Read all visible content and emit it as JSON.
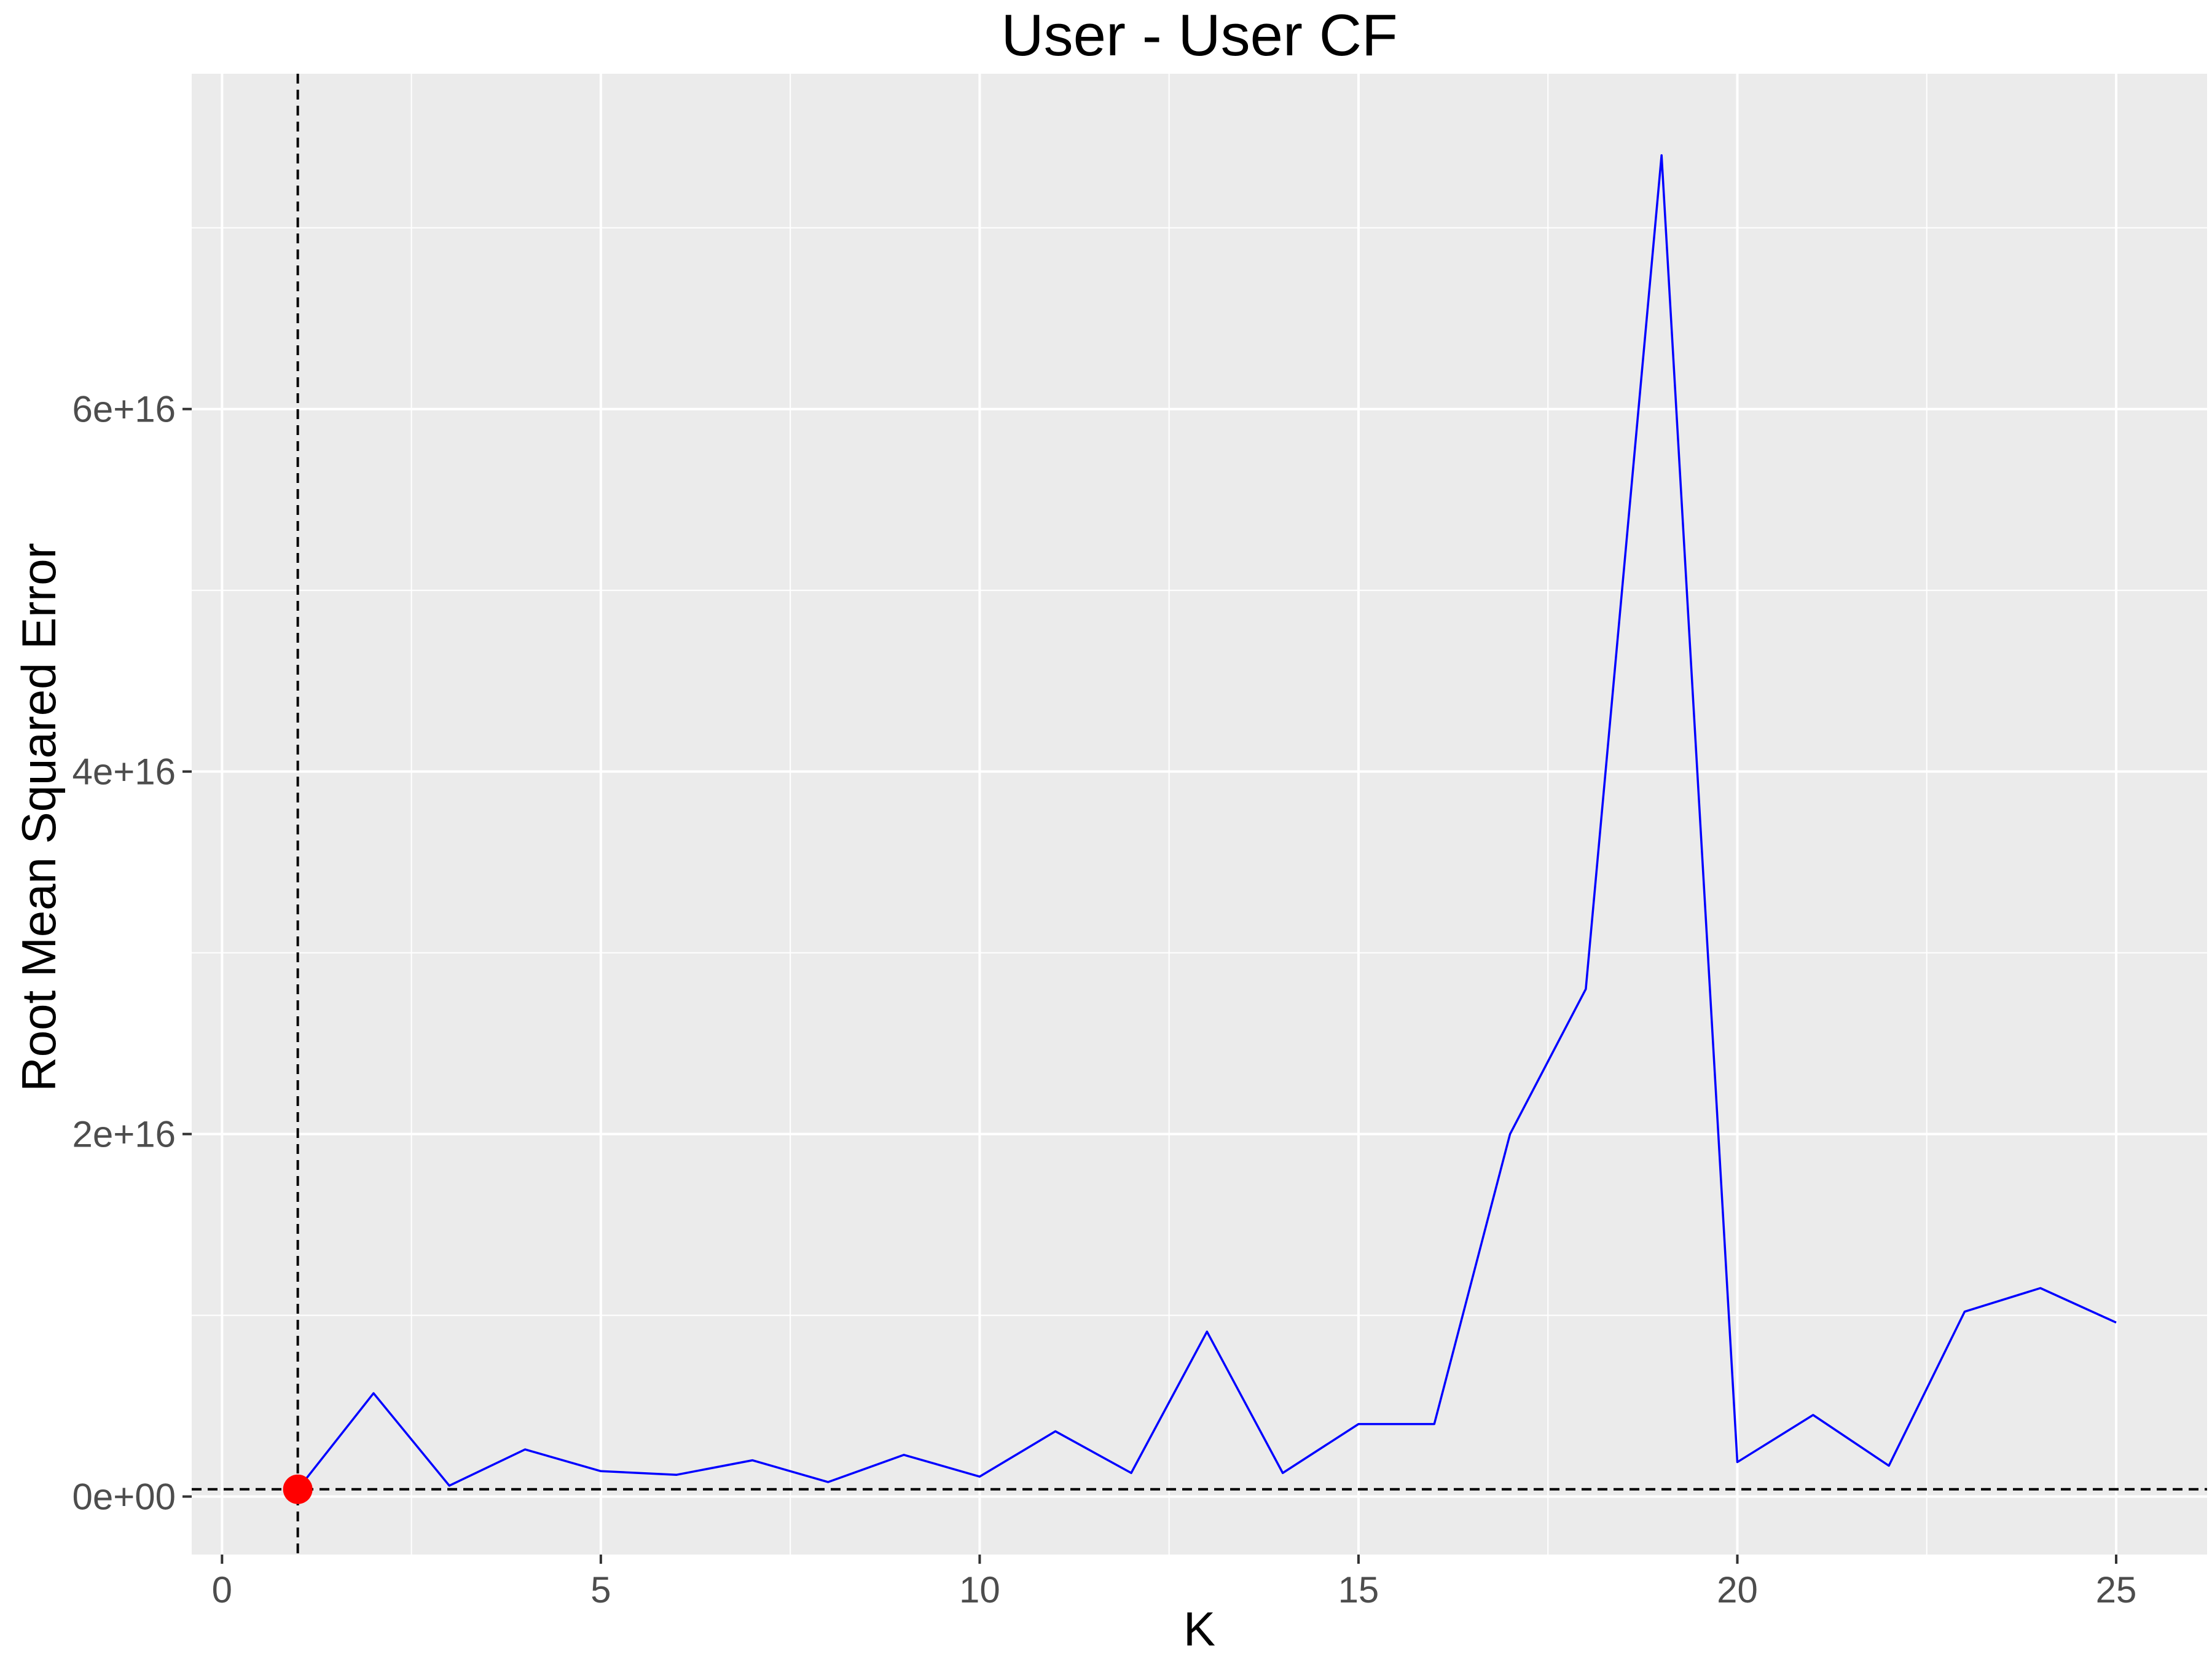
{
  "chart_data": {
    "type": "line",
    "title": "User - User CF",
    "xlabel": "K",
    "ylabel": "Root Mean Squared Error",
    "xlim": [
      -0.4,
      26.2
    ],
    "ylim": [
      -3200000000000000.0,
      7.85e+16
    ],
    "x_ticks": [
      0,
      5,
      10,
      15,
      20,
      25
    ],
    "x_tick_labels": [
      "0",
      "5",
      "10",
      "15",
      "20",
      "25"
    ],
    "y_ticks": [
      0,
      2e+16,
      4e+16,
      6e+16
    ],
    "y_tick_labels": [
      "0e+00",
      "2e+16",
      "4e+16",
      "6e+16"
    ],
    "grid": true,
    "series": [
      {
        "color": "#0000ff",
        "x": [
          1,
          2,
          3,
          4,
          5,
          6,
          7,
          8,
          9,
          10,
          11,
          12,
          13,
          14,
          15,
          16,
          17,
          18,
          19,
          20,
          21,
          22,
          23,
          24,
          25
        ],
        "y": [
          400000000000000.0,
          5700000000000000.0,
          600000000000000.0,
          2600000000000000.0,
          1400000000000000.0,
          1200000000000000.0,
          2000000000000000.0,
          800000000000000.0,
          2300000000000000.0,
          1100000000000000.0,
          3600000000000000.0,
          1300000000000000.0,
          9100000000000000.0,
          1300000000000000.0,
          4000000000000000.0,
          4000000000000000.0,
          2e+16,
          2.8e+16,
          7.4e+16,
          1900000000000000.0,
          4500000000000000.0,
          1700000000000000.0,
          1.02e+16,
          1.15e+16,
          9600000000000000.0
        ]
      }
    ],
    "highlight_point": {
      "x": 1,
      "y": 400000000000000.0,
      "color": "#ff0000"
    },
    "reference_lines": {
      "vline_x": 1,
      "hline_y": 400000000000000.0
    },
    "panel_background": "#ebebeb",
    "gridline_color": "#ffffff"
  }
}
